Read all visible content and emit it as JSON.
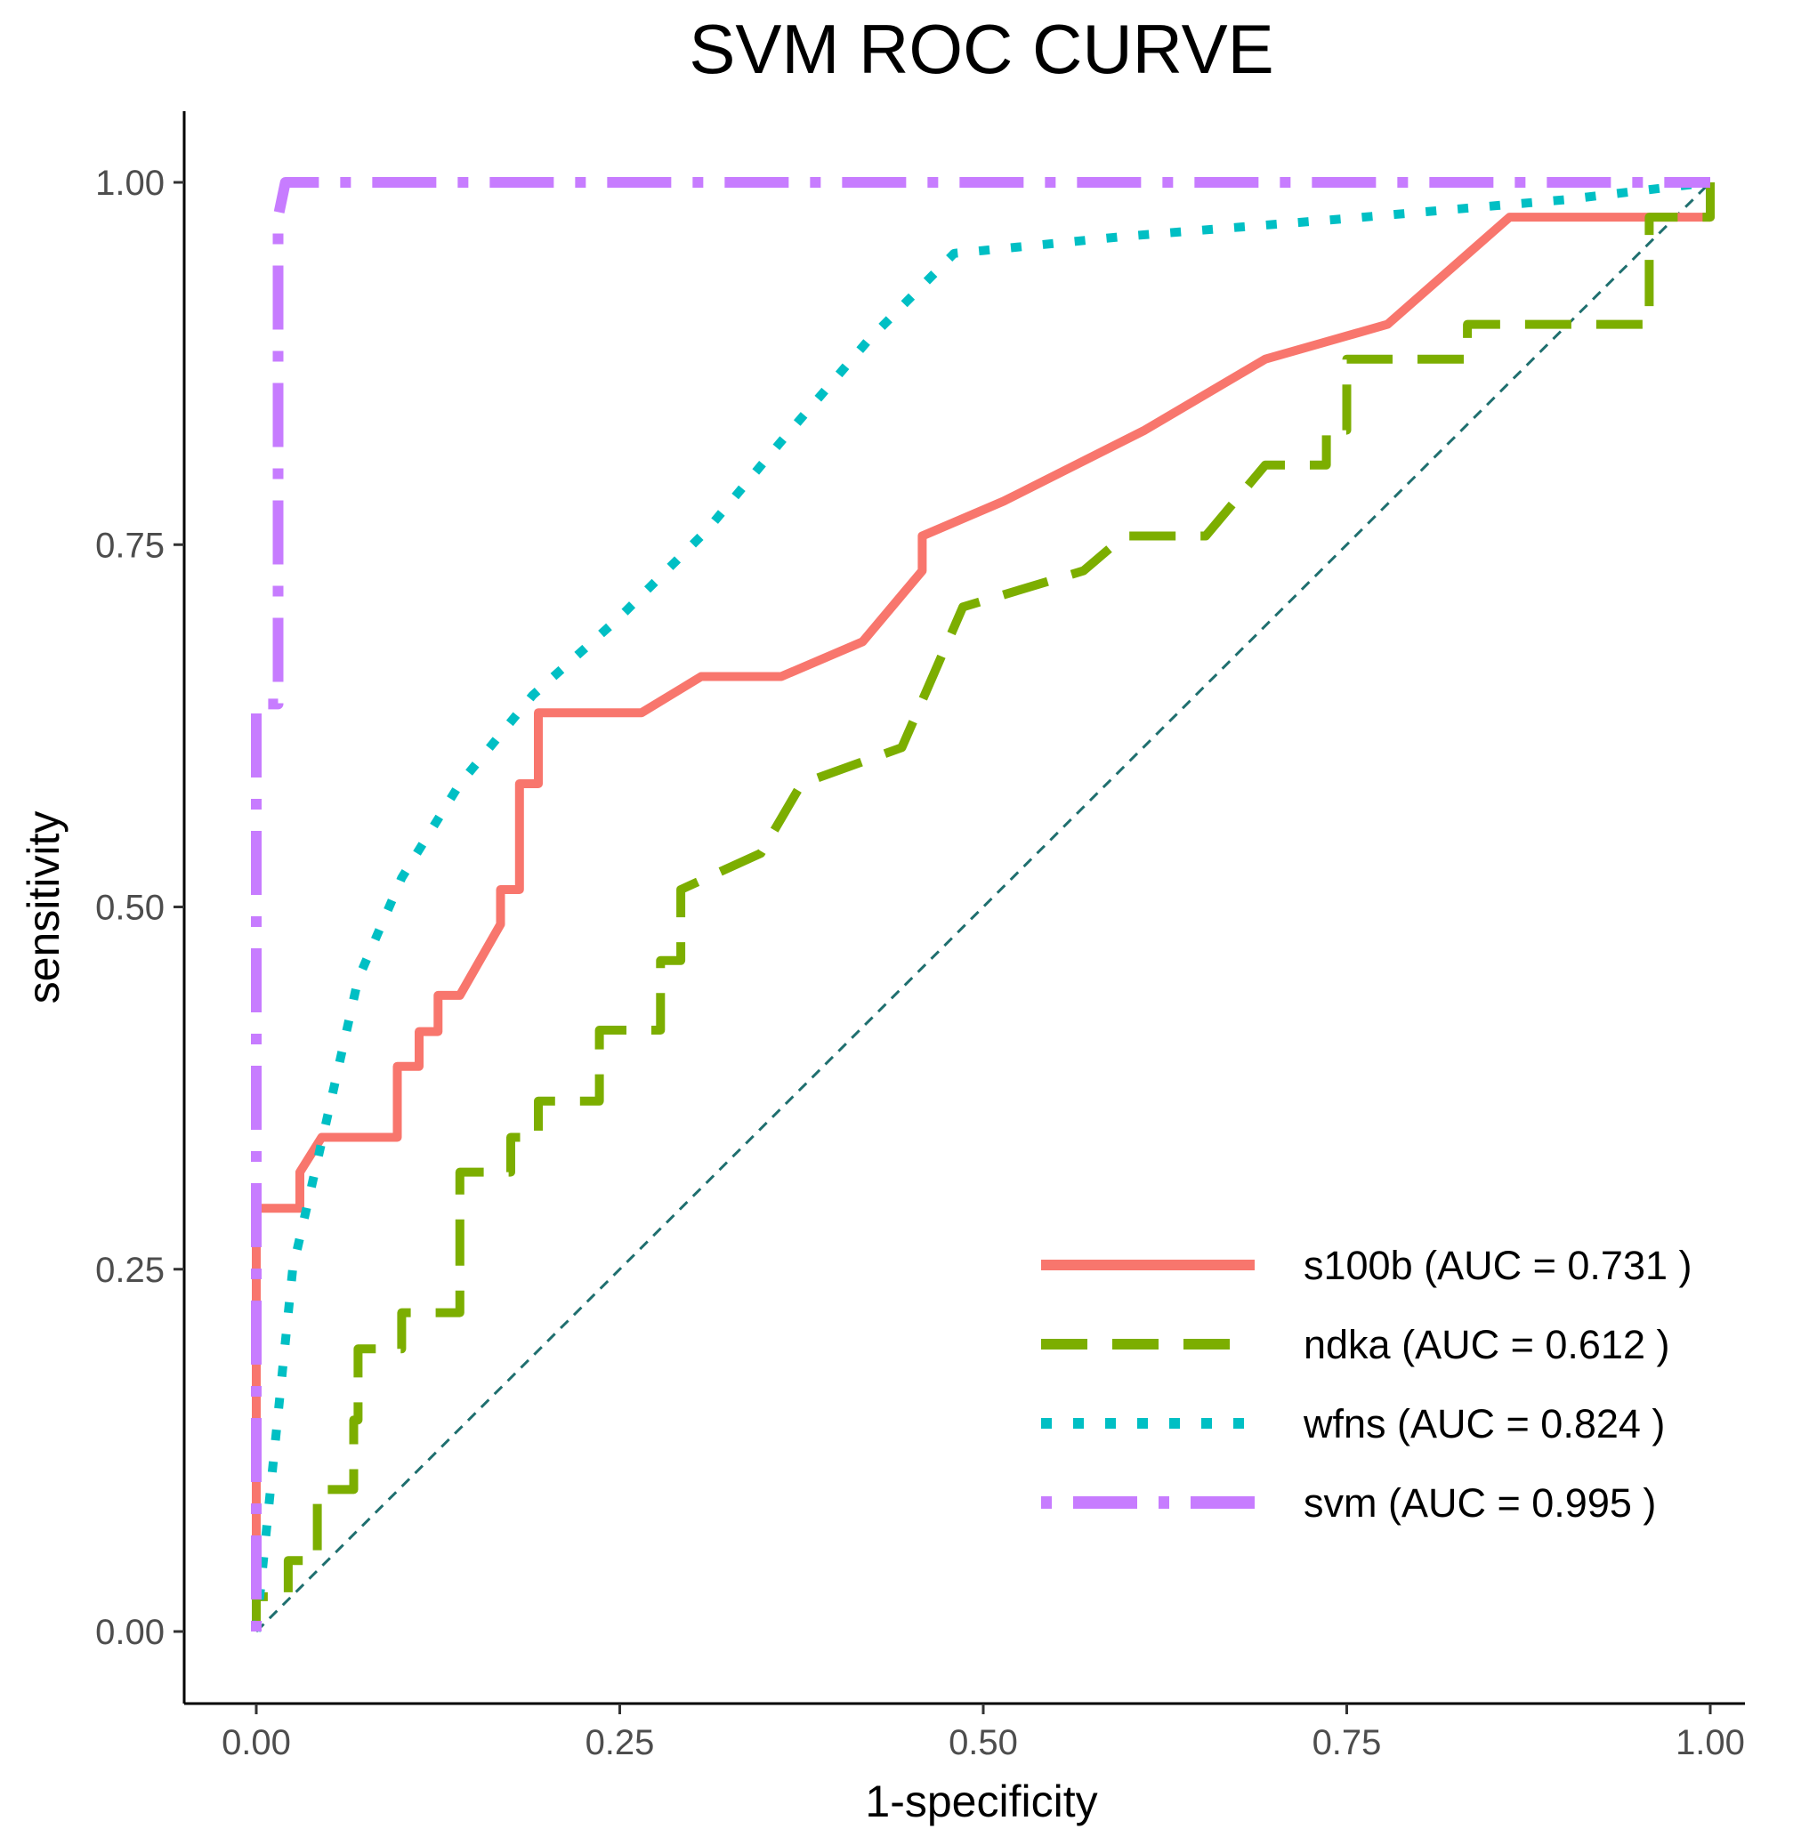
{
  "chart_data": {
    "type": "line",
    "title": "SVM ROC CURVE",
    "xlabel": "1-specificity",
    "ylabel": "sensitivity",
    "xlim": [
      -0.05,
      1.05
    ],
    "ylim": [
      -0.05,
      1.05
    ],
    "x_ticks": [
      0,
      0.25,
      0.5,
      0.75,
      1
    ],
    "x_tick_labels": [
      "0.00",
      "0.25",
      "0.50",
      "0.75",
      "1.00"
    ],
    "y_ticks": [
      0,
      0.25,
      0.5,
      0.75,
      1
    ],
    "y_tick_labels": [
      "0.00",
      "0.25",
      "0.50",
      "0.75",
      "1.00"
    ],
    "grid": false,
    "legend_position": "bottom-right",
    "reference_line": {
      "x": [
        0,
        1
      ],
      "y": [
        0,
        1
      ],
      "color": "#1f6f6f",
      "style": "dashed"
    },
    "series": [
      {
        "name": "s100b",
        "legend_label": "s100b (AUC =  0.731 )",
        "color": "#F8766D",
        "style": "solid",
        "x": [
          0,
          0,
          0.03,
          0.03,
          0.045,
          0.097,
          0.097,
          0.112,
          0.112,
          0.125,
          0.125,
          0.14,
          0.168,
          0.168,
          0.181,
          0.181,
          0.194,
          0.194,
          0.265,
          0.306,
          0.361,
          0.417,
          0.458,
          0.458,
          0.514,
          0.611,
          0.694,
          0.778,
          0.862,
          1,
          1
        ],
        "y": [
          0,
          0.292,
          0.292,
          0.317,
          0.341,
          0.341,
          0.39,
          0.39,
          0.414,
          0.414,
          0.439,
          0.439,
          0.488,
          0.512,
          0.512,
          0.585,
          0.585,
          0.634,
          0.634,
          0.659,
          0.659,
          0.683,
          0.732,
          0.756,
          0.78,
          0.829,
          0.878,
          0.902,
          0.976,
          0.976,
          1
        ]
      },
      {
        "name": "ndka",
        "legend_label": "ndka (AUC =  0.612 )",
        "color": "#7CAE00",
        "style": "dashed",
        "x": [
          0,
          0,
          0.022,
          0.022,
          0.042,
          0.042,
          0.067,
          0.067,
          0.07,
          0.07,
          0.1,
          0.1,
          0.14,
          0.14,
          0.175,
          0.175,
          0.194,
          0.194,
          0.236,
          0.236,
          0.278,
          0.278,
          0.292,
          0.292,
          0.347,
          0.375,
          0.375,
          0.444,
          0.444,
          0.486,
          0.486,
          0.569,
          0.569,
          0.597,
          0.597,
          0.653,
          0.694,
          0.736,
          0.736,
          0.75,
          0.75,
          0.833,
          0.833,
          0.958,
          0.958,
          1,
          1
        ],
        "y": [
          0,
          0.024,
          0.024,
          0.049,
          0.049,
          0.098,
          0.098,
          0.146,
          0.146,
          0.195,
          0.195,
          0.22,
          0.22,
          0.317,
          0.317,
          0.341,
          0.341,
          0.366,
          0.366,
          0.415,
          0.415,
          0.463,
          0.463,
          0.512,
          0.537,
          0.585,
          0.585,
          0.61,
          0.61,
          0.707,
          0.707,
          0.732,
          0.732,
          0.756,
          0.756,
          0.756,
          0.805,
          0.805,
          0.829,
          0.829,
          0.878,
          0.878,
          0.902,
          0.902,
          0.976,
          0.976,
          1
        ]
      },
      {
        "name": "wfns",
        "legend_label": "wfns (AUC =  0.824 )",
        "color": "#00BFC4",
        "style": "dotted",
        "x": [
          0,
          0.01,
          0.025,
          0.05,
          0.07,
          0.1,
          0.14,
          0.19,
          0.25,
          0.31,
          0.36,
          0.42,
          0.48,
          0.5,
          0.6,
          0.75,
          0.9,
          1
        ],
        "y": [
          0,
          0.1,
          0.25,
          0.36,
          0.45,
          0.52,
          0.585,
          0.646,
          0.7,
          0.76,
          0.82,
          0.89,
          0.951,
          0.953,
          0.963,
          0.975,
          0.988,
          1
        ]
      },
      {
        "name": "svm",
        "legend_label": "svm (AUC =  0.995 )",
        "color": "#C77CFF",
        "style": "dotdash",
        "x": [
          0,
          0,
          0.015,
          0.015,
          0.02,
          1
        ],
        "y": [
          0,
          0.64,
          0.64,
          0.976,
          1,
          1
        ]
      }
    ]
  }
}
